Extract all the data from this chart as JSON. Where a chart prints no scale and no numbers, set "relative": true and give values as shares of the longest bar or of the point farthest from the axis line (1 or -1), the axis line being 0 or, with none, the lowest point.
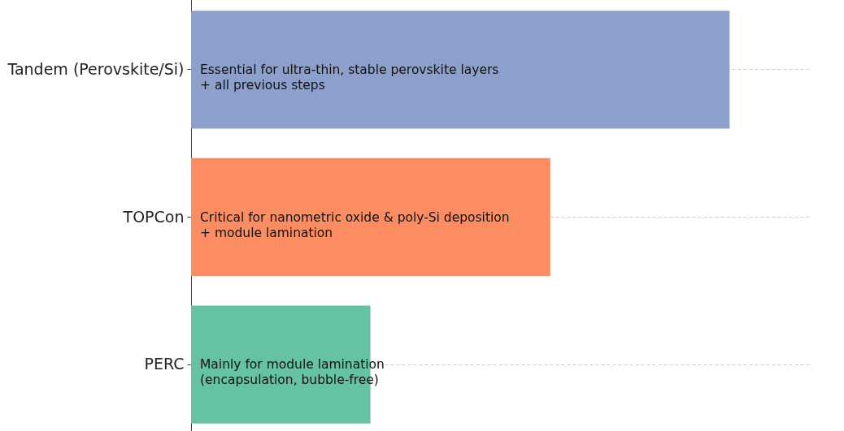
{
  "chart_data": {
    "type": "bar",
    "orientation": "horizontal",
    "relative": true,
    "categories": [
      "Tandem (Perovskite/Si)",
      "TOPCon",
      "PERC"
    ],
    "values": [
      1,
      0.667,
      0.333
    ],
    "colors": [
      "#8da0cb",
      "#fc8d62",
      "#66c2a5"
    ],
    "grid": "y",
    "annotations": [
      "Essential for ultra-thin, stable perovskite layers\n+ all previous steps",
      "Critical for nanometric oxide & poly-Si deposition\n+ module lamination",
      "Mainly for module lamination\n(encapsulation, bubble-free)"
    ]
  }
}
